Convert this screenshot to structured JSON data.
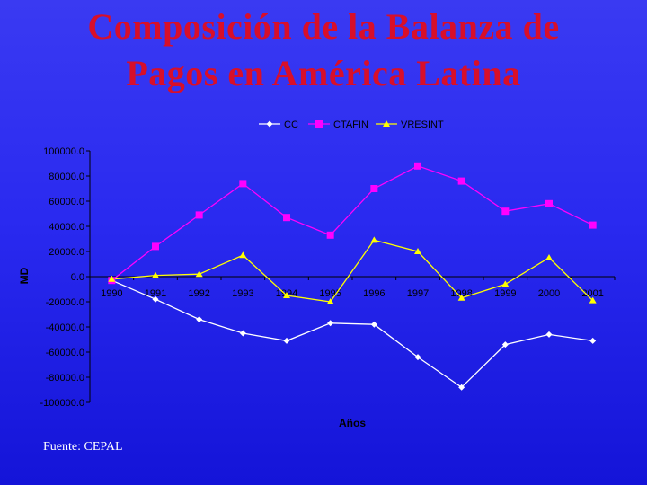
{
  "slide": {
    "title_line1": "Composición de la Balanza de",
    "title_line2": "Pagos en América Latina",
    "source": "Fuente: CEPAL"
  },
  "colors": {
    "title": "#d80f2a",
    "text": "#000000",
    "cc": "#ffffff",
    "ctafin": "#ff00ff",
    "vresint": "#ffff00"
  },
  "chart_data": {
    "type": "line",
    "title": "",
    "xlabel": "Años",
    "ylabel": "MD",
    "ylim": [
      -100000,
      100000
    ],
    "y_ticks": [
      100000,
      80000,
      60000,
      40000,
      20000,
      0,
      -20000,
      -40000,
      -60000,
      -80000,
      -100000
    ],
    "y_tick_labels": [
      "100000.0",
      "80000.0",
      "60000.0",
      "40000.0",
      "20000.0",
      "0.0",
      "-20000.0",
      "-40000.0",
      "-60000.0",
      "-80000.0",
      "-100000.0"
    ],
    "grid": false,
    "legend_position": "top",
    "categories": [
      "1990",
      "1991",
      "1992",
      "1993",
      "1994",
      "1995",
      "1996",
      "1997",
      "1998",
      "1999",
      "2000",
      "2001"
    ],
    "series": [
      {
        "name": "CC",
        "marker": "diamond",
        "color": "#ffffff",
        "values": [
          -3000,
          -18000,
          -34000,
          -45000,
          -51000,
          -37000,
          -38000,
          -64000,
          -88000,
          -54000,
          -46000,
          -51000
        ]
      },
      {
        "name": "CTAFIN",
        "marker": "square",
        "color": "#ff00ff",
        "values": [
          -3000,
          24000,
          49000,
          74000,
          47000,
          33000,
          70000,
          88000,
          76000,
          52000,
          58000,
          41000
        ]
      },
      {
        "name": "VRESINT",
        "marker": "triangle",
        "color": "#ffff00",
        "values": [
          -2000,
          1000,
          2000,
          17000,
          -15000,
          -20000,
          29000,
          20000,
          -17000,
          -6000,
          15000,
          -19000
        ]
      }
    ]
  }
}
